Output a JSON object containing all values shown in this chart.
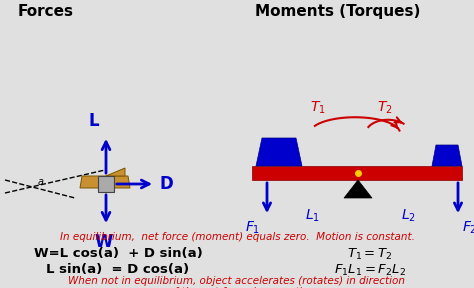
{
  "title_left": "Forces",
  "title_right": "Moments (Torques)",
  "bg_color": "#e0e0e0",
  "blue": "#0000cc",
  "red": "#cc0000",
  "eq_text": "In equilibrium,  net force (moment) equals zero.  Motion is constant.",
  "neq_text1": "When not in equilibrium, object accelerates (rotates) in direction",
  "neq_text2": "of the net force (moment).",
  "eq1": "W=L cos(a)  + D sin(a)",
  "eq2": "L sin(a)  = D cos(a)",
  "figsize": [
    4.74,
    2.88
  ],
  "dpi": 100
}
